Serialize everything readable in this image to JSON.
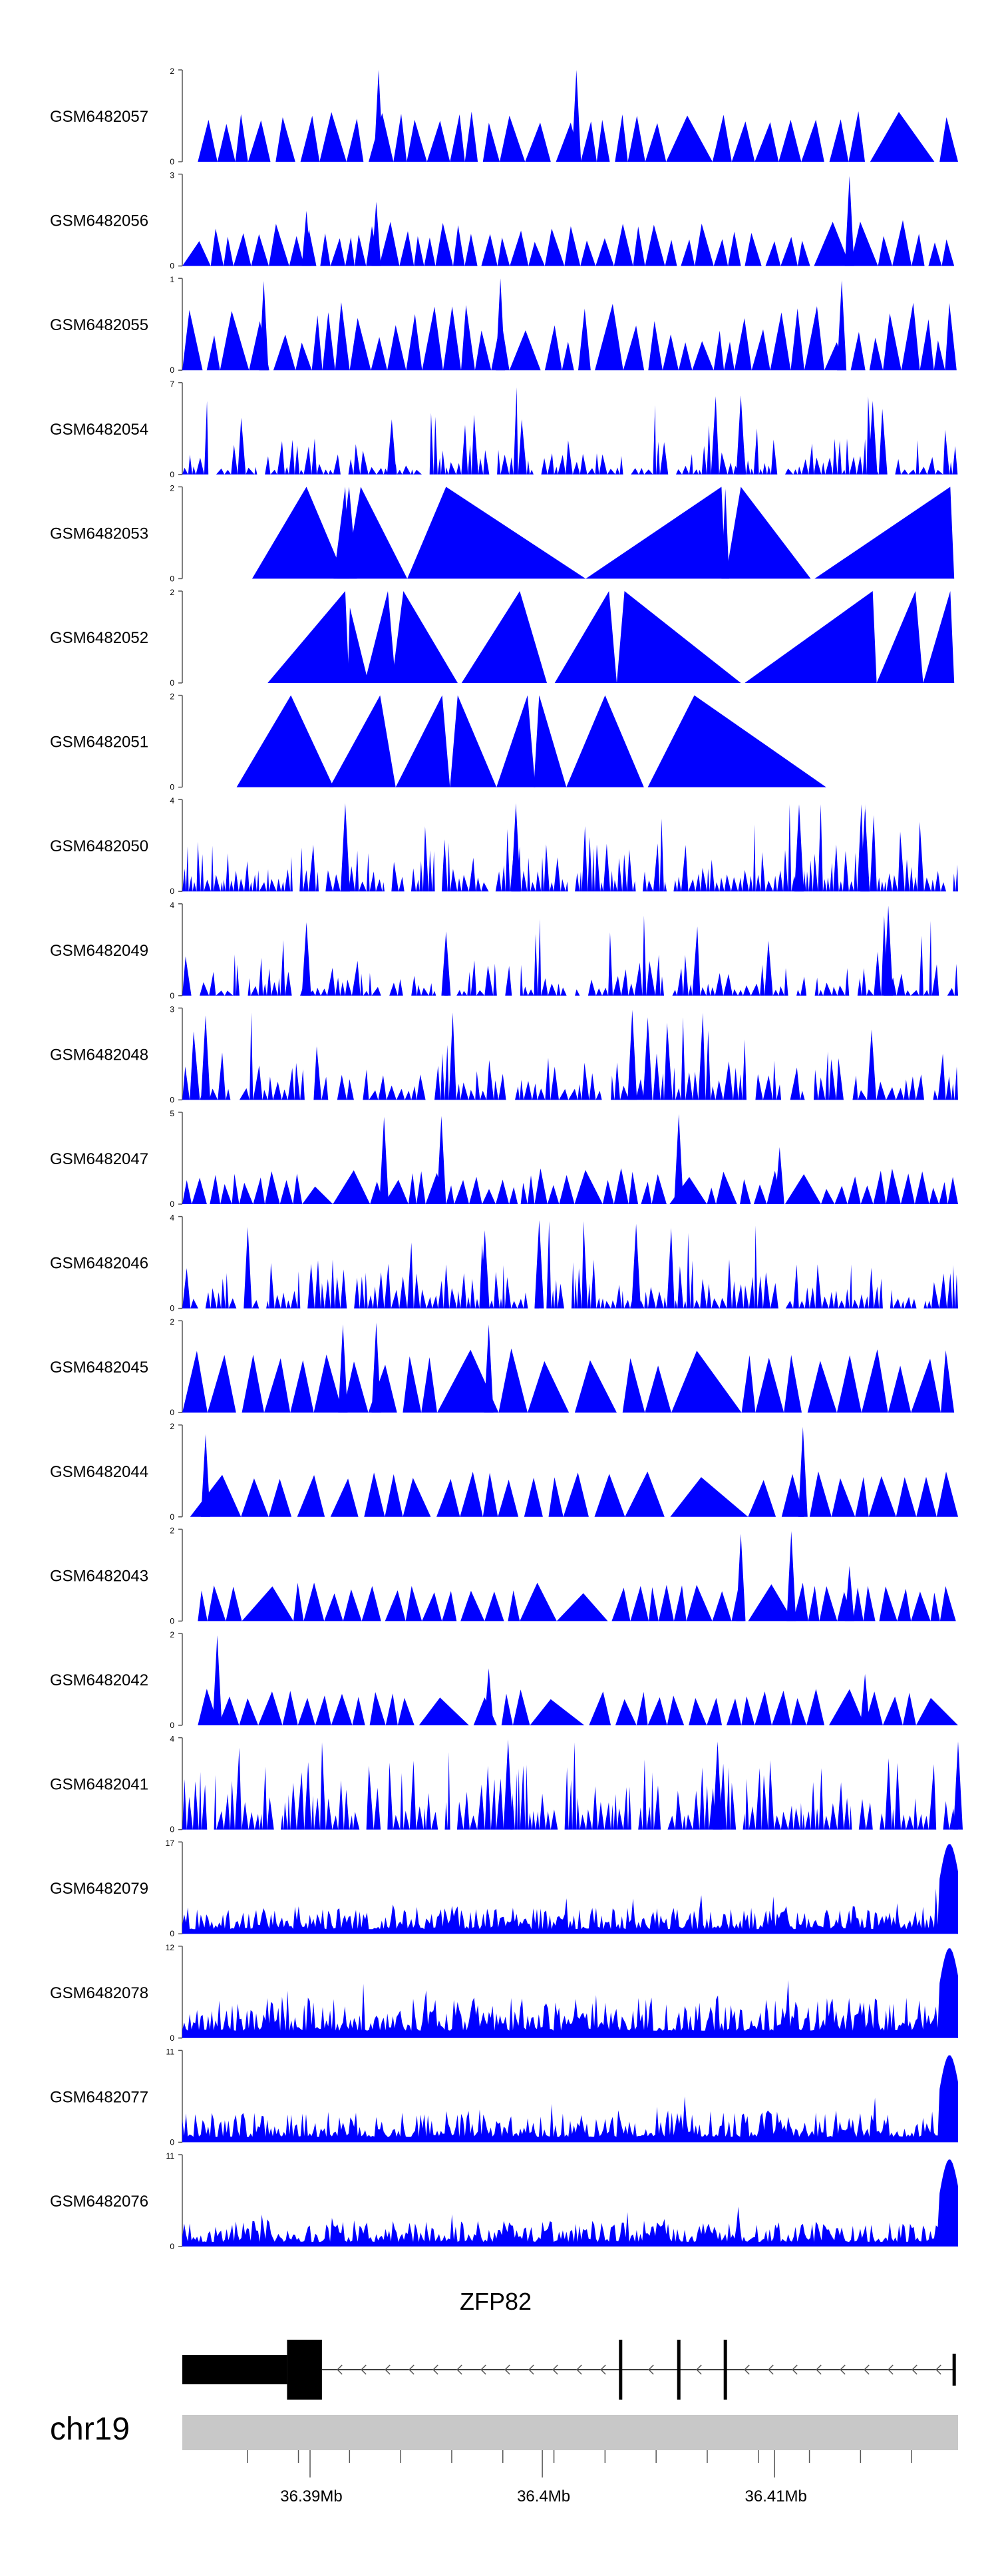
{
  "figure": {
    "chromosome": "chr19",
    "gene_label": "ZFP82",
    "colors": {
      "signal": "#0000ff",
      "gene": "#000000",
      "ideogram": "#c8c8c8",
      "axis": "#555555"
    }
  },
  "chart_data": {
    "type": "area",
    "title": "",
    "xlabel": "chr19",
    "ylabel": "",
    "xlim": [
      36.3845,
      36.4179
    ],
    "x_tick_labels": [
      "36.39Mb",
      "36.4Mb",
      "36.41Mb"
    ],
    "x_tick_values": [
      36.39,
      36.4,
      36.41
    ],
    "x_minor_ticks": [
      36.3873,
      36.3895,
      36.3917,
      36.3939,
      36.3961,
      36.3983,
      36.4005,
      36.4027,
      36.4049,
      36.4071,
      36.4093,
      36.4115,
      36.4137,
      36.4159
    ],
    "tracks": [
      {
        "name": "GSM6482057",
        "ymax_label": "2",
        "ymin_label": "0",
        "ymax": 2,
        "kind": "sparse",
        "seed": 57,
        "start": 0.02,
        "end": 1.0,
        "gaps": 44,
        "peakLo": 0.4,
        "peakHi": 0.55,
        "spikes": [
          [
            0.253,
            1.0
          ],
          [
            0.508,
            1.0
          ]
        ]
      },
      {
        "name": "GSM6482056",
        "ymax_label": "3",
        "ymin_label": "0",
        "ymax": 3,
        "kind": "sparse",
        "seed": 56,
        "start": 0.0,
        "end": 0.995,
        "gaps": 60,
        "peakLo": 0.25,
        "peakHi": 0.5,
        "spikes": [
          [
            0.86,
            0.98
          ],
          [
            0.25,
            0.7
          ],
          [
            0.16,
            0.6
          ]
        ]
      },
      {
        "name": "GSM6482055",
        "ymax_label": "1",
        "ymin_label": "0",
        "ymax": 1,
        "kind": "sparse",
        "seed": 55,
        "start": 0.0,
        "end": 1.0,
        "gaps": 56,
        "peakLo": 0.3,
        "peakHi": 0.75,
        "spikes": [
          [
            0.105,
            0.97
          ],
          [
            0.41,
            1.0
          ],
          [
            0.85,
            0.98
          ]
        ]
      },
      {
        "name": "GSM6482054",
        "ymax_label": "7",
        "ymin_label": "0",
        "ymax": 7,
        "kind": "dense",
        "seed": 54,
        "start": 0.0,
        "end": 1.0,
        "density": 150,
        "peakLo": 0.05,
        "peakHi": 0.4,
        "spikes": [
          [
            0.72,
            0.86
          ],
          [
            0.89,
            0.8
          ],
          [
            0.27,
            0.6
          ]
        ]
      },
      {
        "name": "GSM6482053",
        "ymax_label": "2",
        "ymin_label": "0",
        "ymax": 2,
        "kind": "explicit",
        "peaks": [
          [
            0.09,
            0.16,
            0.21,
            1.0
          ],
          [
            0.195,
            0.21,
            0.215,
            1.0
          ],
          [
            0.2,
            0.215,
            0.225,
            1.0
          ],
          [
            0.21,
            0.23,
            0.29,
            1.0
          ],
          [
            0.29,
            0.34,
            0.52,
            1.0
          ],
          [
            0.52,
            0.695,
            0.7,
            1.0
          ],
          [
            0.695,
            0.7,
            0.705,
            0.98
          ],
          [
            0.7,
            0.72,
            0.81,
            1.0
          ],
          [
            0.815,
            0.99,
            0.995,
            1.0
          ]
        ]
      },
      {
        "name": "GSM6482052",
        "ymax_label": "2",
        "ymin_label": "0",
        "ymax": 2,
        "kind": "explicit",
        "peaks": [
          [
            0.11,
            0.21,
            0.215,
            1.0
          ],
          [
            0.213,
            0.216,
            0.24,
            0.82
          ],
          [
            0.235,
            0.265,
            0.275,
            1.0
          ],
          [
            0.27,
            0.285,
            0.355,
            1.0
          ],
          [
            0.36,
            0.435,
            0.47,
            1.0
          ],
          [
            0.48,
            0.55,
            0.56,
            1.0
          ],
          [
            0.56,
            0.57,
            0.72,
            1.0
          ],
          [
            0.725,
            0.89,
            0.895,
            1.0
          ],
          [
            0.895,
            0.945,
            0.955,
            1.0
          ],
          [
            0.955,
            0.99,
            0.995,
            1.0
          ]
        ]
      },
      {
        "name": "GSM6482051",
        "ymax_label": "2",
        "ymin_label": "0",
        "ymax": 2,
        "kind": "explicit",
        "peaks": [
          [
            0.07,
            0.14,
            0.195,
            1.0
          ],
          [
            0.19,
            0.255,
            0.275,
            1.0
          ],
          [
            0.275,
            0.335,
            0.345,
            1.0
          ],
          [
            0.345,
            0.355,
            0.405,
            1.0
          ],
          [
            0.405,
            0.445,
            0.455,
            1.0
          ],
          [
            0.453,
            0.46,
            0.495,
            1.0
          ],
          [
            0.495,
            0.545,
            0.595,
            1.0
          ],
          [
            0.6,
            0.66,
            0.83,
            1.0
          ]
        ]
      },
      {
        "name": "GSM6482050",
        "ymax_label": "4",
        "ymin_label": "0",
        "ymax": 4,
        "kind": "dense",
        "seed": 50,
        "start": 0.0,
        "end": 1.0,
        "density": 170,
        "peakLo": 0.1,
        "peakHi": 0.55,
        "spikes": [
          [
            0.21,
            0.96
          ],
          [
            0.43,
            0.96
          ],
          [
            0.795,
            0.95
          ],
          [
            0.88,
            0.9
          ]
        ]
      },
      {
        "name": "GSM6482049",
        "ymax_label": "4",
        "ymin_label": "0",
        "ymax": 4,
        "kind": "dense",
        "seed": 49,
        "start": 0.0,
        "end": 1.0,
        "density": 140,
        "peakLo": 0.05,
        "peakHi": 0.45,
        "spikes": [
          [
            0.91,
            0.98
          ],
          [
            0.16,
            0.8
          ],
          [
            0.34,
            0.7
          ]
        ]
      },
      {
        "name": "GSM6482048",
        "ymax_label": "3",
        "ymin_label": "0",
        "ymax": 3,
        "kind": "dense",
        "seed": 48,
        "start": 0.0,
        "end": 1.0,
        "density": 130,
        "peakLo": 0.1,
        "peakHi": 0.6,
        "spikes": [
          [
            0.58,
            0.98
          ],
          [
            0.03,
            0.92
          ],
          [
            0.6,
            0.9
          ]
        ]
      },
      {
        "name": "GSM6482047",
        "ymax_label": "5",
        "ymin_label": "0",
        "ymax": 5,
        "kind": "sparse",
        "seed": 47,
        "start": 0.0,
        "end": 1.0,
        "gaps": 80,
        "peakLo": 0.15,
        "peakHi": 0.4,
        "spikes": [
          [
            0.26,
            0.95
          ],
          [
            0.334,
            0.96
          ],
          [
            0.64,
            0.98
          ],
          [
            0.77,
            0.62
          ]
        ]
      },
      {
        "name": "GSM6482046",
        "ymax_label": "4",
        "ymin_label": "0",
        "ymax": 4,
        "kind": "dense",
        "seed": 46,
        "start": 0.0,
        "end": 1.0,
        "density": 160,
        "peakLo": 0.08,
        "peakHi": 0.55,
        "spikes": [
          [
            0.46,
            0.96
          ],
          [
            0.585,
            0.92
          ],
          [
            0.39,
            0.85
          ]
        ]
      },
      {
        "name": "GSM6482045",
        "ymax_label": "2",
        "ymin_label": "0",
        "ymax": 2,
        "kind": "sparse",
        "seed": 45,
        "start": 0.0,
        "end": 0.995,
        "gaps": 40,
        "peakLo": 0.5,
        "peakHi": 0.7,
        "spikes": [
          [
            0.207,
            0.96
          ],
          [
            0.25,
            0.98
          ],
          [
            0.395,
            0.96
          ]
        ]
      },
      {
        "name": "GSM6482044",
        "ymax_label": "2",
        "ymin_label": "0",
        "ymax": 2,
        "kind": "sparse",
        "seed": 44,
        "start": 0.01,
        "end": 1.0,
        "gaps": 40,
        "peakLo": 0.4,
        "peakHi": 0.5,
        "spikes": [
          [
            0.03,
            0.9
          ],
          [
            0.8,
            0.98
          ]
        ]
      },
      {
        "name": "GSM6482043",
        "ymax_label": "2",
        "ymin_label": "0",
        "ymax": 2,
        "kind": "sparse",
        "seed": 43,
        "start": 0.02,
        "end": 1.0,
        "gaps": 58,
        "peakLo": 0.3,
        "peakHi": 0.42,
        "spikes": [
          [
            0.72,
            0.95
          ],
          [
            0.785,
            0.98
          ],
          [
            0.86,
            0.6
          ]
        ]
      },
      {
        "name": "GSM6482042",
        "ymax_label": "2",
        "ymin_label": "0",
        "ymax": 2,
        "kind": "sparse",
        "seed": 42,
        "start": 0.02,
        "end": 1.0,
        "gaps": 50,
        "peakLo": 0.28,
        "peakHi": 0.4,
        "spikes": [
          [
            0.045,
            0.98
          ],
          [
            0.395,
            0.62
          ],
          [
            0.88,
            0.56
          ]
        ]
      },
      {
        "name": "GSM6482041",
        "ymax_label": "4",
        "ymin_label": "0",
        "ymax": 4,
        "kind": "dense",
        "seed": 41,
        "start": 0.0,
        "end": 1.0,
        "density": 170,
        "peakLo": 0.15,
        "peakHi": 0.8,
        "spikes": [
          [
            0.42,
            0.98
          ],
          [
            0.69,
            0.96
          ],
          [
            1.0,
            0.96
          ]
        ]
      },
      {
        "name": "GSM6482079",
        "ymax_label": "17",
        "ymin_label": "0",
        "ymax": 17,
        "kind": "smooth",
        "seed": 79,
        "baseLo": 0.05,
        "baseHi": 0.3,
        "tailHeight": 0.98
      },
      {
        "name": "GSM6482078",
        "ymax_label": "12",
        "ymin_label": "0",
        "ymax": 12,
        "kind": "smooth",
        "seed": 78,
        "baseLo": 0.08,
        "baseHi": 0.45,
        "tailHeight": 0.98
      },
      {
        "name": "GSM6482077",
        "ymax_label": "11",
        "ymin_label": "0",
        "ymax": 11,
        "kind": "smooth",
        "seed": 77,
        "baseLo": 0.06,
        "baseHi": 0.35,
        "tailHeight": 0.95
      },
      {
        "name": "GSM6482076",
        "ymax_label": "11",
        "ymin_label": "0",
        "ymax": 11,
        "kind": "smooth",
        "seed": 76,
        "baseLo": 0.05,
        "baseHi": 0.28,
        "tailHeight": 0.95
      }
    ],
    "gene_model": {
      "name": "ZFP82",
      "strand": "-",
      "utr_block": [
        0.0,
        0.135
      ],
      "cds_block": [
        0.135,
        0.18
      ],
      "exons": [
        0.565,
        0.64,
        0.7,
        0.995
      ]
    }
  }
}
